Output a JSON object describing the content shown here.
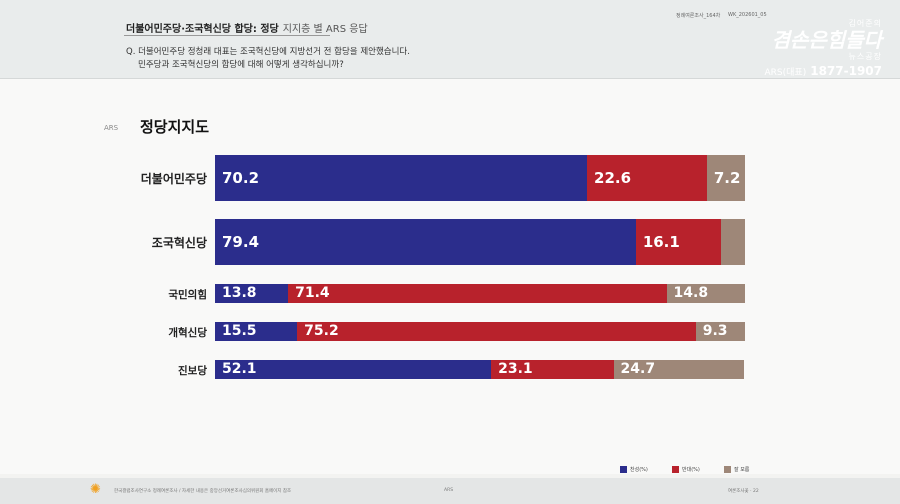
{
  "header": {
    "title_bold": "더불어민주당·조국혁신당 합당: 정당",
    "title_sub": "지지층 별 ARS 응답",
    "question_line1": "Q. 더불어민주당 정청래 대표는 조국혁신당에 지방선거 전 합당을 제안했습니다.",
    "question_line2": "민주당과 조국혁신당의 합당에 대해 어떻게 생각하십니까?",
    "meta_1": "정례여론조사_164차",
    "meta_2": "WK_202601_05",
    "logo_top": "김어준의",
    "logo_main": "겸손은힘들다",
    "logo_tail": "뉴스공장",
    "logo_ars": "ARS(대표)",
    "logo_number": "1877-1907"
  },
  "chart_data": {
    "type": "bar",
    "orientation": "horizontal",
    "stacked": true,
    "title": "정당지지도",
    "tag": "ARS",
    "categories": [
      "더불어민주당",
      "조국혁신당",
      "국민의힘",
      "개혁신당",
      "진보당"
    ],
    "series": [
      {
        "name": "찬성(%)",
        "color": "#2b2d8c",
        "values": [
          70.2,
          79.4,
          13.8,
          15.5,
          52.1
        ],
        "labels": [
          "70.2",
          "79.4",
          "13.8",
          "15.5",
          "52.1"
        ]
      },
      {
        "name": "반대(%)",
        "color": "#b8222c",
        "values": [
          22.6,
          16.1,
          71.4,
          75.2,
          23.1
        ],
        "labels": [
          "22.6",
          "16.1",
          "71.4",
          "75.2",
          "23.1"
        ]
      },
      {
        "name": "잘 모름",
        "color": "#9e8778",
        "values": [
          7.2,
          4.5,
          14.8,
          9.3,
          24.7
        ],
        "labels": [
          "7.2",
          "",
          "14.8",
          "9.3",
          "24.7"
        ]
      }
    ],
    "xlim": [
      0,
      100
    ]
  },
  "footer": {
    "left_note": "한국갤럽조사연구소 정례여론조사 / 자세한 내용은 중앙선거여론조사심의위원회 홈페이지 참조",
    "center": "ARS",
    "right": "여론조사꽃 · 22"
  }
}
